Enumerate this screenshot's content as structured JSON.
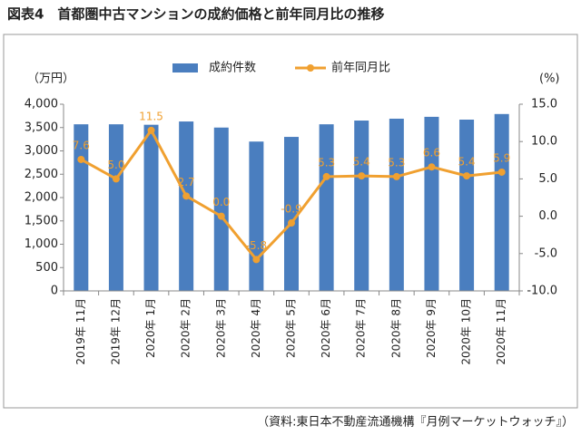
{
  "chart_data": {
    "type": "bar-line",
    "title": "図表4　首都圏中古マンションの成約価格と前年同月比の推移",
    "source": "（資料:東日本不動産流通機構『月例マーケットウォッチ』）",
    "ylabel": "（万円）",
    "y2label": "(%)",
    "categories": [
      "2019年 11月",
      "2019年 12月",
      "2020年 1月",
      "2020年 2月",
      "2020年 3月",
      "2020年 4月",
      "2020年 5月",
      "2020年 6月",
      "2020年 7月",
      "2020年 8月",
      "2020年 9月",
      "2020年 10月",
      "2020年 11月"
    ],
    "series": [
      {
        "name": "成約件数",
        "color": "#4a7ebf",
        "type": "bar",
        "values": [
          3570,
          3570,
          3560,
          3630,
          3500,
          3200,
          3300,
          3570,
          3650,
          3690,
          3730,
          3670,
          3790
        ]
      },
      {
        "name": "前年同月比",
        "color": "#f0a030",
        "type": "line",
        "axis": "y2",
        "values": [
          7.6,
          5.0,
          11.5,
          2.7,
          0.0,
          -5.8,
          -0.9,
          5.3,
          5.4,
          5.3,
          6.6,
          5.4,
          5.9
        ],
        "value_labels": [
          "7.6",
          "5.0",
          "11.5",
          "2.7",
          "0.0",
          "-5.8",
          "-0.9",
          "5.3",
          "5.4",
          "5.3",
          "6.6",
          "5.4",
          "5.9"
        ]
      }
    ],
    "ylim": [
      0,
      4000
    ],
    "yticks": [
      0,
      {
        "value": 500,
        "label": "500"
      },
      {
        "value": 1000,
        "label": "1,000"
      },
      {
        "value": 1500,
        "label": "1,500"
      },
      {
        "value": 2000,
        "label": "2,000"
      },
      {
        "value": 2500,
        "label": "2,500"
      },
      {
        "value": 3000,
        "label": "3,000"
      },
      {
        "value": 3500,
        "label": "3,500"
      },
      {
        "value": 4000,
        "label": "4,000"
      }
    ],
    "y2lim": [
      -10,
      15
    ],
    "y2ticks": [
      {
        "value": -10,
        "label": "-10.0"
      },
      {
        "value": -5,
        "label": "-5.0"
      },
      {
        "value": 0,
        "label": "0.0"
      },
      {
        "value": 5,
        "label": "5.0"
      },
      {
        "value": 10,
        "label": "10.0"
      },
      {
        "value": 15,
        "label": "15.0"
      }
    ],
    "legend": "top"
  }
}
